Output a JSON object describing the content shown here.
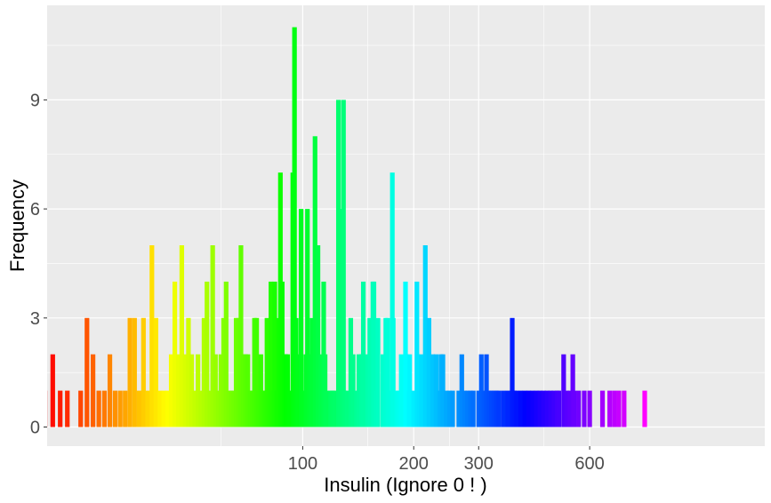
{
  "chart_data": {
    "type": "bar",
    "xlabel": "Insulin (Ignore 0 ! )",
    "ylabel": "Frequency",
    "x_scale": "log10",
    "x_ticks": [
      100,
      200,
      300,
      600
    ],
    "x_tick_labels": [
      "100",
      "200",
      "300",
      "600"
    ],
    "y_ticks": [
      0,
      3,
      6,
      9
    ],
    "y_tick_labels": [
      "0",
      "3",
      "6",
      "9"
    ],
    "ylim": [
      0,
      11
    ],
    "grid": true,
    "panel_background": "#ebebeb",
    "grid_color": "#ffffff",
    "bar_fill": "rainbow gradient from red through yellow, green, cyan, blue, magenta back to red",
    "bars": [
      [
        14,
        1
      ],
      [
        15,
        1
      ],
      [
        16,
        1
      ],
      [
        18,
        2
      ],
      [
        19,
        1
      ],
      [
        20,
        1
      ],
      [
        21,
        2
      ],
      [
        22,
        1
      ],
      [
        23,
        1
      ],
      [
        25,
        1
      ],
      [
        26,
        3
      ],
      [
        27,
        2
      ],
      [
        28,
        1
      ],
      [
        29,
        1
      ],
      [
        30,
        2
      ],
      [
        31,
        1
      ],
      [
        32,
        1
      ],
      [
        33,
        1
      ],
      [
        34,
        3
      ],
      [
        35,
        3
      ],
      [
        36,
        1
      ],
      [
        37,
        3
      ],
      [
        38,
        1
      ],
      [
        39,
        5
      ],
      [
        40,
        3
      ],
      [
        41,
        1
      ],
      [
        42,
        1
      ],
      [
        43,
        1
      ],
      [
        44,
        2
      ],
      [
        45,
        4
      ],
      [
        46,
        2
      ],
      [
        47,
        5
      ],
      [
        48,
        2
      ],
      [
        49,
        3
      ],
      [
        50,
        2
      ],
      [
        51,
        1
      ],
      [
        52,
        2
      ],
      [
        53,
        1
      ],
      [
        54,
        3
      ],
      [
        55,
        4
      ],
      [
        56,
        1
      ],
      [
        57,
        5
      ],
      [
        58,
        2
      ],
      [
        59,
        1
      ],
      [
        60,
        2
      ],
      [
        61,
        3
      ],
      [
        62,
        4
      ],
      [
        63,
        1
      ],
      [
        64,
        1
      ],
      [
        65,
        1
      ],
      [
        66,
        3
      ],
      [
        67,
        3
      ],
      [
        68,
        5
      ],
      [
        69,
        2
      ],
      [
        70,
        2
      ],
      [
        71,
        2
      ],
      [
        72,
        1
      ],
      [
        73,
        1
      ],
      [
        74,
        3
      ],
      [
        75,
        3
      ],
      [
        76,
        1
      ],
      [
        77,
        2
      ],
      [
        78,
        1
      ],
      [
        79,
        1
      ],
      [
        80,
        3
      ],
      [
        81,
        2
      ],
      [
        82,
        4
      ],
      [
        83,
        1
      ],
      [
        84,
        4
      ],
      [
        85,
        1
      ],
      [
        86,
        3
      ],
      [
        87,
        7
      ],
      [
        88,
        4
      ],
      [
        89,
        2
      ],
      [
        90,
        2
      ],
      [
        91,
        2
      ],
      [
        92,
        1
      ],
      [
        94,
        7
      ],
      [
        95,
        11
      ],
      [
        96,
        3
      ],
      [
        97,
        2
      ],
      [
        99,
        6
      ],
      [
        100,
        1
      ],
      [
        102,
        2
      ],
      [
        103,
        6
      ],
      [
        104,
        2
      ],
      [
        105,
        2
      ],
      [
        106,
        3
      ],
      [
        108,
        8
      ],
      [
        110,
        5
      ],
      [
        112,
        2
      ],
      [
        114,
        4
      ],
      [
        115,
        2
      ],
      [
        116,
        1
      ],
      [
        119,
        1
      ],
      [
        120,
        1
      ],
      [
        121,
        1
      ],
      [
        122,
        1
      ],
      [
        125,
        9
      ],
      [
        126,
        2
      ],
      [
        128,
        6
      ],
      [
        129,
        9
      ],
      [
        130,
        1
      ],
      [
        132,
        1
      ],
      [
        135,
        3
      ],
      [
        137,
        2
      ],
      [
        140,
        1
      ],
      [
        142,
        2
      ],
      [
        144,
        2
      ],
      [
        145,
        2
      ],
      [
        146,
        4
      ],
      [
        150,
        2
      ],
      [
        152,
        3
      ],
      [
        155,
        4
      ],
      [
        156,
        4
      ],
      [
        158,
        1
      ],
      [
        160,
        3
      ],
      [
        165,
        2
      ],
      [
        167,
        1
      ],
      [
        168,
        3
      ],
      [
        170,
        3
      ],
      [
        171,
        1
      ],
      [
        175,
        7
      ],
      [
        176,
        3
      ],
      [
        180,
        1
      ],
      [
        182,
        1
      ],
      [
        185,
        2
      ],
      [
        190,
        4
      ],
      [
        191,
        2
      ],
      [
        194,
        1
      ],
      [
        195,
        2
      ],
      [
        200,
        1
      ],
      [
        204,
        4
      ],
      [
        205,
        2
      ],
      [
        207,
        1
      ],
      [
        210,
        2
      ],
      [
        215,
        5
      ],
      [
        220,
        3
      ],
      [
        225,
        2
      ],
      [
        230,
        2
      ],
      [
        235,
        1
      ],
      [
        237,
        2
      ],
      [
        240,
        2
      ],
      [
        245,
        1
      ],
      [
        250,
        1
      ],
      [
        255,
        1
      ],
      [
        265,
        1
      ],
      [
        270,
        2
      ],
      [
        275,
        1
      ],
      [
        280,
        1
      ],
      [
        285,
        1
      ],
      [
        290,
        1
      ],
      [
        300,
        1
      ],
      [
        305,
        2
      ],
      [
        310,
        1
      ],
      [
        315,
        2
      ],
      [
        320,
        1
      ],
      [
        325,
        1
      ],
      [
        330,
        1
      ],
      [
        335,
        1
      ],
      [
        340,
        1
      ],
      [
        350,
        1
      ],
      [
        360,
        1
      ],
      [
        370,
        3
      ],
      [
        375,
        1
      ],
      [
        380,
        1
      ],
      [
        390,
        1
      ],
      [
        400,
        1
      ],
      [
        410,
        1
      ],
      [
        420,
        1
      ],
      [
        430,
        1
      ],
      [
        440,
        1
      ],
      [
        450,
        1
      ],
      [
        460,
        1
      ],
      [
        470,
        1
      ],
      [
        480,
        1
      ],
      [
        490,
        1
      ],
      [
        495,
        1
      ],
      [
        510,
        2
      ],
      [
        520,
        1
      ],
      [
        530,
        1
      ],
      [
        540,
        2
      ],
      [
        545,
        1
      ],
      [
        560,
        1
      ],
      [
        580,
        1
      ],
      [
        600,
        1
      ],
      [
        650,
        1
      ],
      [
        680,
        1
      ],
      [
        700,
        1
      ],
      [
        720,
        1
      ],
      [
        744,
        1
      ],
      [
        846,
        1
      ]
    ]
  }
}
